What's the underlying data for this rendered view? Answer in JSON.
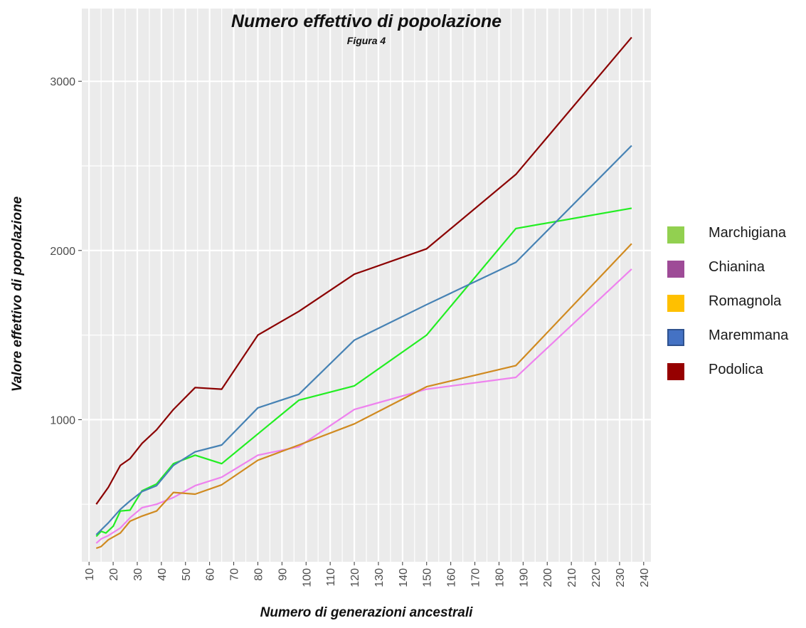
{
  "chart_data": {
    "type": "line",
    "title": "Numero effettivo di popolazione",
    "subtitle": "Figura 4",
    "xlabel": "Numero di generazioni ancestrali",
    "ylabel": "Valore effettivo di popolazione",
    "xlim": [
      7,
      243
    ],
    "ylim": [
      160,
      3430
    ],
    "x_ticks": [
      10,
      20,
      30,
      40,
      50,
      60,
      70,
      80,
      90,
      100,
      110,
      120,
      130,
      140,
      150,
      160,
      170,
      180,
      190,
      200,
      210,
      220,
      230,
      240
    ],
    "y_ticks": [
      1000,
      2000,
      3000
    ],
    "y_minor_ticks": [
      500,
      1500,
      2500
    ],
    "grid": true,
    "legend_position": "right",
    "series": [
      {
        "name": "Marchigiana",
        "color": "#22ee22",
        "legend_color": "#92d050",
        "points": [
          [
            13,
            310
          ],
          [
            15,
            340
          ],
          [
            17,
            330
          ],
          [
            20,
            370
          ],
          [
            23,
            460
          ],
          [
            27,
            465
          ],
          [
            32,
            580
          ],
          [
            38,
            620
          ],
          [
            45,
            740
          ],
          [
            54,
            790
          ],
          [
            65,
            740
          ],
          [
            97,
            1115
          ],
          [
            120,
            1200
          ],
          [
            150,
            1500
          ],
          [
            187,
            2130
          ],
          [
            235,
            2250
          ]
        ]
      },
      {
        "name": "Chianina",
        "color": "#ee82ee",
        "legend_color": "#9e4b97",
        "points": [
          [
            13,
            270
          ],
          [
            15,
            295
          ],
          [
            18,
            315
          ],
          [
            23,
            360
          ],
          [
            27,
            420
          ],
          [
            32,
            480
          ],
          [
            38,
            500
          ],
          [
            45,
            540
          ],
          [
            54,
            610
          ],
          [
            65,
            660
          ],
          [
            80,
            790
          ],
          [
            97,
            840
          ],
          [
            120,
            1060
          ],
          [
            150,
            1180
          ],
          [
            187,
            1250
          ],
          [
            235,
            1890
          ]
        ]
      },
      {
        "name": "Romagnola",
        "color": "#d08a20",
        "legend_color": "#ffc000",
        "points": [
          [
            13,
            240
          ],
          [
            15,
            250
          ],
          [
            18,
            290
          ],
          [
            23,
            330
          ],
          [
            27,
            400
          ],
          [
            32,
            430
          ],
          [
            38,
            460
          ],
          [
            45,
            570
          ],
          [
            54,
            560
          ],
          [
            65,
            615
          ],
          [
            80,
            760
          ],
          [
            97,
            850
          ],
          [
            120,
            975
          ],
          [
            150,
            1195
          ],
          [
            187,
            1320
          ],
          [
            235,
            2040
          ]
        ]
      },
      {
        "name": "Maremmana",
        "color": "#4682b4",
        "legend_color": "#4472c4",
        "points": [
          [
            13,
            320
          ],
          [
            18,
            390
          ],
          [
            23,
            470
          ],
          [
            27,
            520
          ],
          [
            32,
            575
          ],
          [
            38,
            610
          ],
          [
            45,
            730
          ],
          [
            54,
            810
          ],
          [
            65,
            850
          ],
          [
            80,
            1070
          ],
          [
            97,
            1150
          ],
          [
            120,
            1470
          ],
          [
            150,
            1680
          ],
          [
            187,
            1930
          ],
          [
            235,
            2620
          ]
        ]
      },
      {
        "name": "Podolica",
        "color": "#8b0000",
        "legend_color": "#960000",
        "points": [
          [
            13,
            500
          ],
          [
            18,
            600
          ],
          [
            23,
            730
          ],
          [
            27,
            770
          ],
          [
            32,
            860
          ],
          [
            38,
            940
          ],
          [
            45,
            1060
          ],
          [
            54,
            1190
          ],
          [
            65,
            1180
          ],
          [
            80,
            1500
          ],
          [
            97,
            1640
          ],
          [
            120,
            1860
          ],
          [
            150,
            2010
          ],
          [
            187,
            2450
          ],
          [
            235,
            3260
          ]
        ]
      }
    ]
  }
}
